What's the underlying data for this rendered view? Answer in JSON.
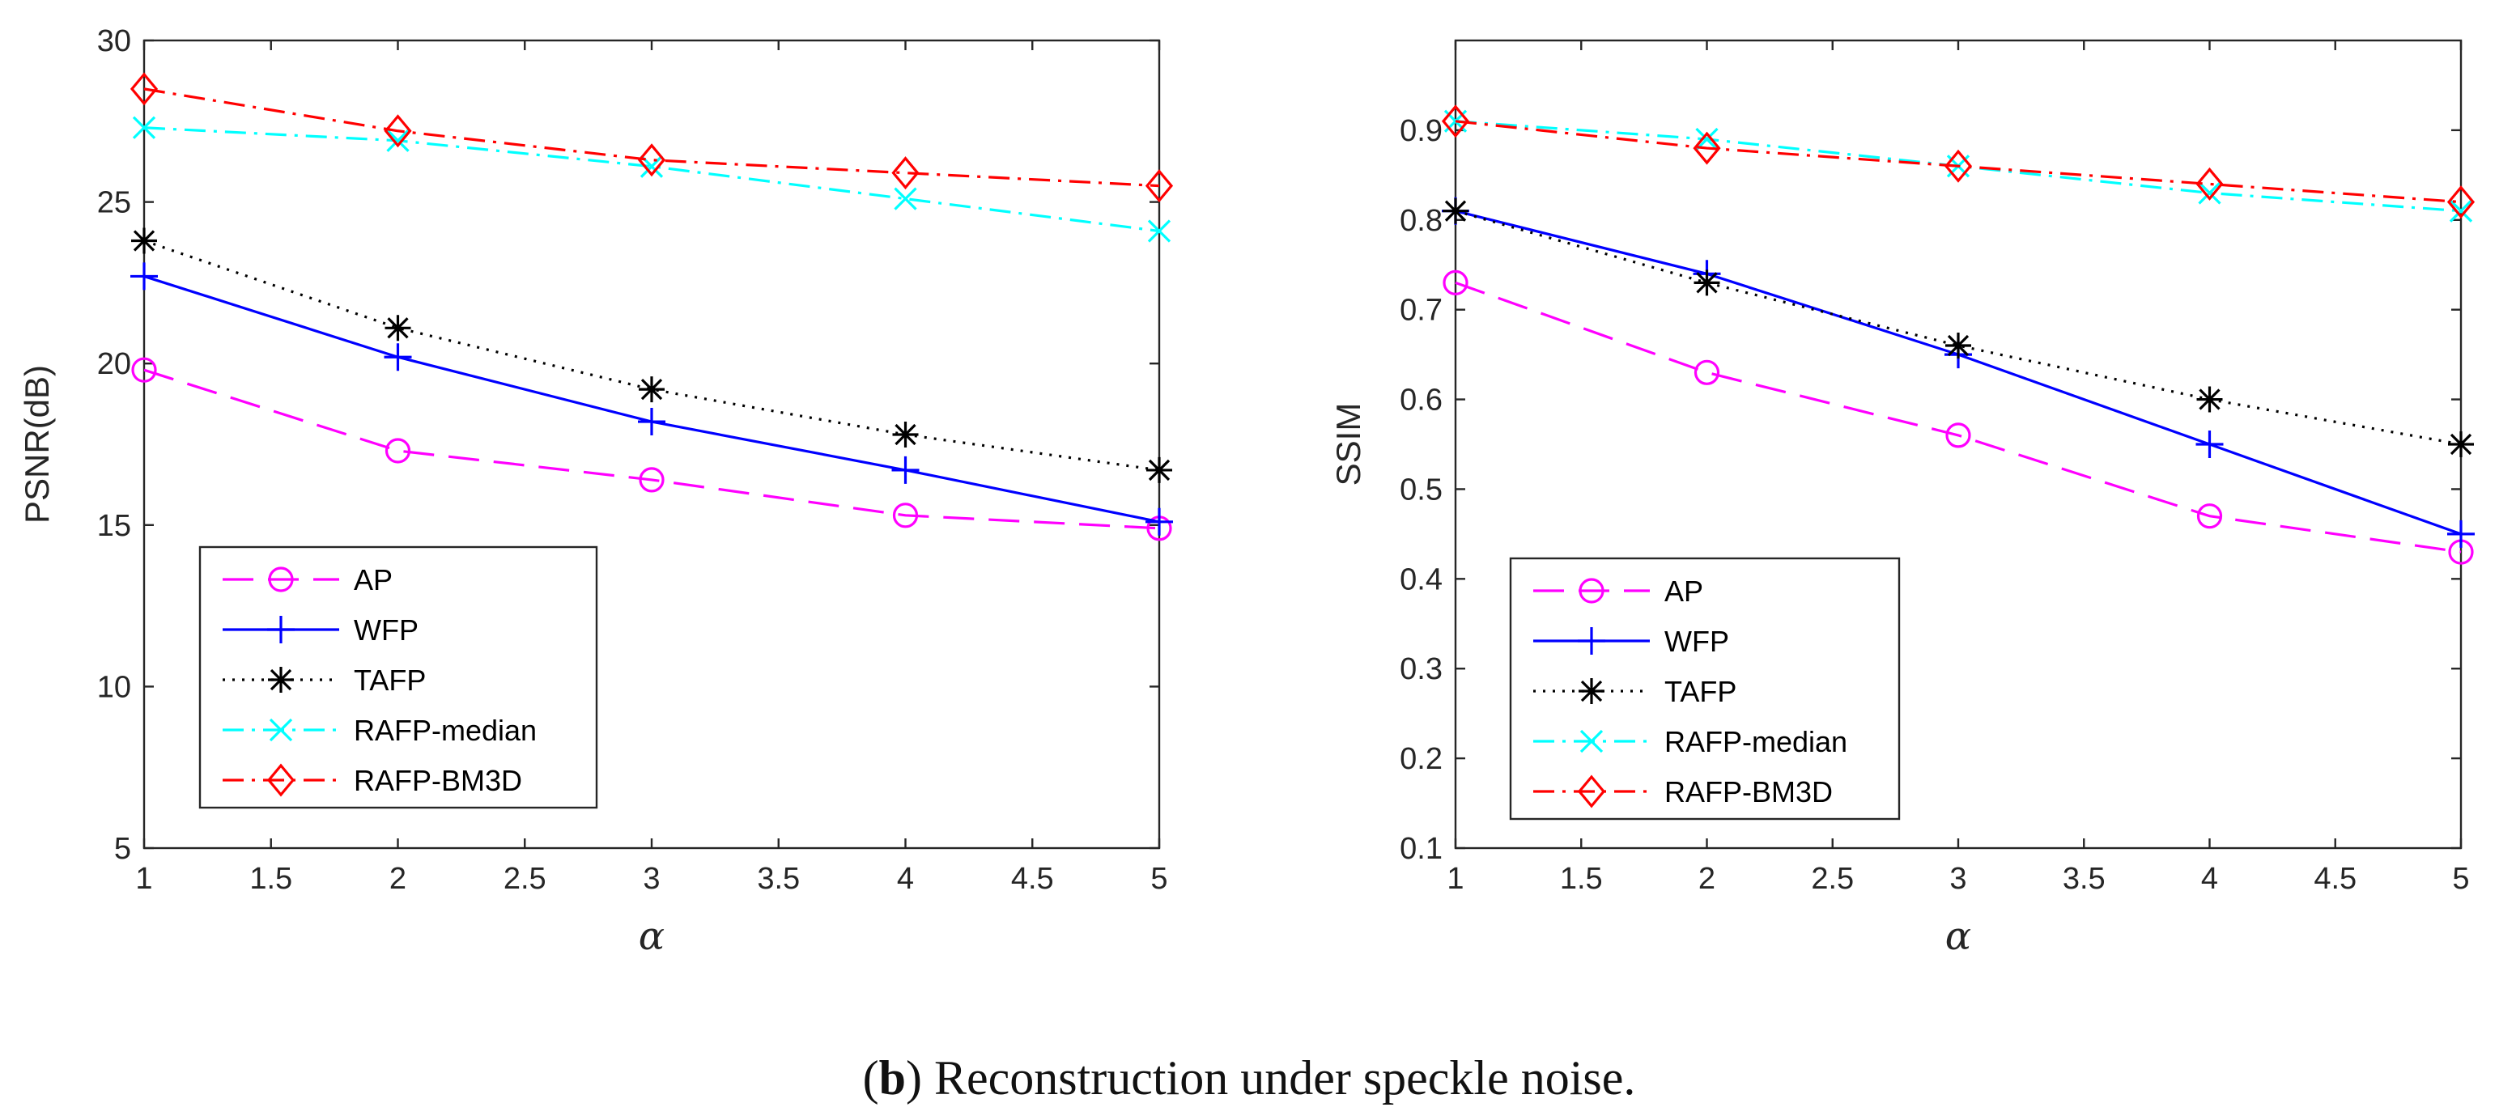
{
  "caption": {
    "open": "(",
    "bold": "b",
    "rest": ") Reconstruction under speckle noise."
  },
  "legend_order": [
    "AP",
    "WFP",
    "TAFP",
    "RAFP-median",
    "RAFP-BM3D"
  ],
  "series_styles": {
    "AP": {
      "color": "#ff00ff",
      "dash": "38,18",
      "marker": "circle"
    },
    "WFP": {
      "color": "#0000ff",
      "dash": "",
      "marker": "plus"
    },
    "TAFP": {
      "color": "#000000",
      "dash": "3,9",
      "marker": "asterisk"
    },
    "RAFP-median": {
      "color": "#00ffff",
      "dash": "26,10,4,10",
      "marker": "x"
    },
    "RAFP-BM3D": {
      "color": "#ff0000",
      "dash": "26,10,4,10",
      "marker": "diamond"
    }
  },
  "chart_data": [
    {
      "type": "line",
      "title": "",
      "xlabel": "α",
      "ylabel": "PSNR(dB)",
      "xlim": [
        1,
        5
      ],
      "ylim": [
        5,
        30
      ],
      "xticks": [
        1,
        1.5,
        2,
        2.5,
        3,
        3.5,
        4,
        4.5,
        5
      ],
      "xtick_labels": [
        "1",
        "1.5",
        "2",
        "2.5",
        "3",
        "3.5",
        "4",
        "4.5",
        "5"
      ],
      "yticks": [
        5,
        10,
        15,
        20,
        25,
        30
      ],
      "ytick_labels": [
        "5",
        "10",
        "15",
        "20",
        "25",
        "30"
      ],
      "grid": false,
      "legend": "lower-left",
      "x": [
        1,
        2,
        3,
        4,
        5
      ],
      "series": [
        {
          "name": "AP",
          "values": [
            19.8,
            17.3,
            16.4,
            15.3,
            14.9
          ]
        },
        {
          "name": "WFP",
          "values": [
            22.7,
            20.2,
            18.2,
            16.7,
            15.1
          ]
        },
        {
          "name": "TAFP",
          "values": [
            23.8,
            21.1,
            19.2,
            17.8,
            16.7
          ]
        },
        {
          "name": "RAFP-median",
          "values": [
            27.3,
            26.9,
            26.1,
            25.1,
            24.1
          ]
        },
        {
          "name": "RAFP-BM3D",
          "values": [
            28.5,
            27.2,
            26.3,
            25.9,
            25.5
          ]
        }
      ]
    },
    {
      "type": "line",
      "title": "",
      "xlabel": "α",
      "ylabel": "SSIM",
      "xlim": [
        1,
        5
      ],
      "ylim": [
        0.1,
        1.0
      ],
      "xticks": [
        1,
        1.5,
        2,
        2.5,
        3,
        3.5,
        4,
        4.5,
        5
      ],
      "xtick_labels": [
        "1",
        "1.5",
        "2",
        "2.5",
        "3",
        "3.5",
        "4",
        "4.5",
        "5"
      ],
      "yticks": [
        0.1,
        0.2,
        0.3,
        0.4,
        0.5,
        0.6,
        0.7,
        0.8,
        0.9
      ],
      "ytick_labels": [
        "0.1",
        "0.2",
        "0.3",
        "0.4",
        "0.5",
        "0.6",
        "0.7",
        "0.8",
        "0.9"
      ],
      "grid": false,
      "legend": "lower-left",
      "x": [
        1,
        2,
        3,
        4,
        5
      ],
      "series": [
        {
          "name": "AP",
          "values": [
            0.73,
            0.63,
            0.56,
            0.47,
            0.43
          ]
        },
        {
          "name": "WFP",
          "values": [
            0.81,
            0.74,
            0.65,
            0.55,
            0.45
          ]
        },
        {
          "name": "TAFP",
          "values": [
            0.81,
            0.73,
            0.66,
            0.6,
            0.55
          ]
        },
        {
          "name": "RAFP-median",
          "values": [
            0.91,
            0.89,
            0.86,
            0.83,
            0.81
          ]
        },
        {
          "name": "RAFP-BM3D",
          "values": [
            0.91,
            0.88,
            0.86,
            0.84,
            0.82
          ]
        }
      ]
    }
  ]
}
